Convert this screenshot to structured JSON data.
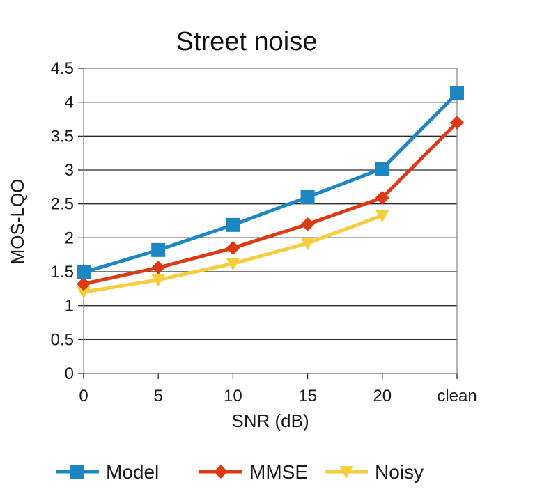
{
  "chart_data": {
    "type": "line",
    "title": "Street noise",
    "xlabel": "SNR (dB)",
    "ylabel": "MOS-LQO",
    "categories": [
      "0",
      "5",
      "10",
      "15",
      "20",
      "clean"
    ],
    "ylim": [
      0,
      4.5
    ],
    "yticks": [
      "0",
      "0.5",
      "1",
      "1.5",
      "2",
      "2.5",
      "3",
      "3.5",
      "4",
      "4.5"
    ],
    "grid": true,
    "legend_position": "bottom",
    "series": [
      {
        "name": "Model",
        "color": "#1f86c4",
        "marker": "square",
        "values": [
          1.49,
          1.82,
          2.19,
          2.6,
          3.02,
          4.13
        ]
      },
      {
        "name": "MMSE",
        "color": "#dd3a13",
        "marker": "diamond",
        "values": [
          1.32,
          1.56,
          1.85,
          2.2,
          2.59,
          3.7
        ]
      },
      {
        "name": "Noisy",
        "color": "#f8cd3b",
        "marker": "triangle-down",
        "values": [
          1.2,
          1.38,
          1.62,
          1.92,
          2.33,
          null
        ]
      }
    ]
  }
}
